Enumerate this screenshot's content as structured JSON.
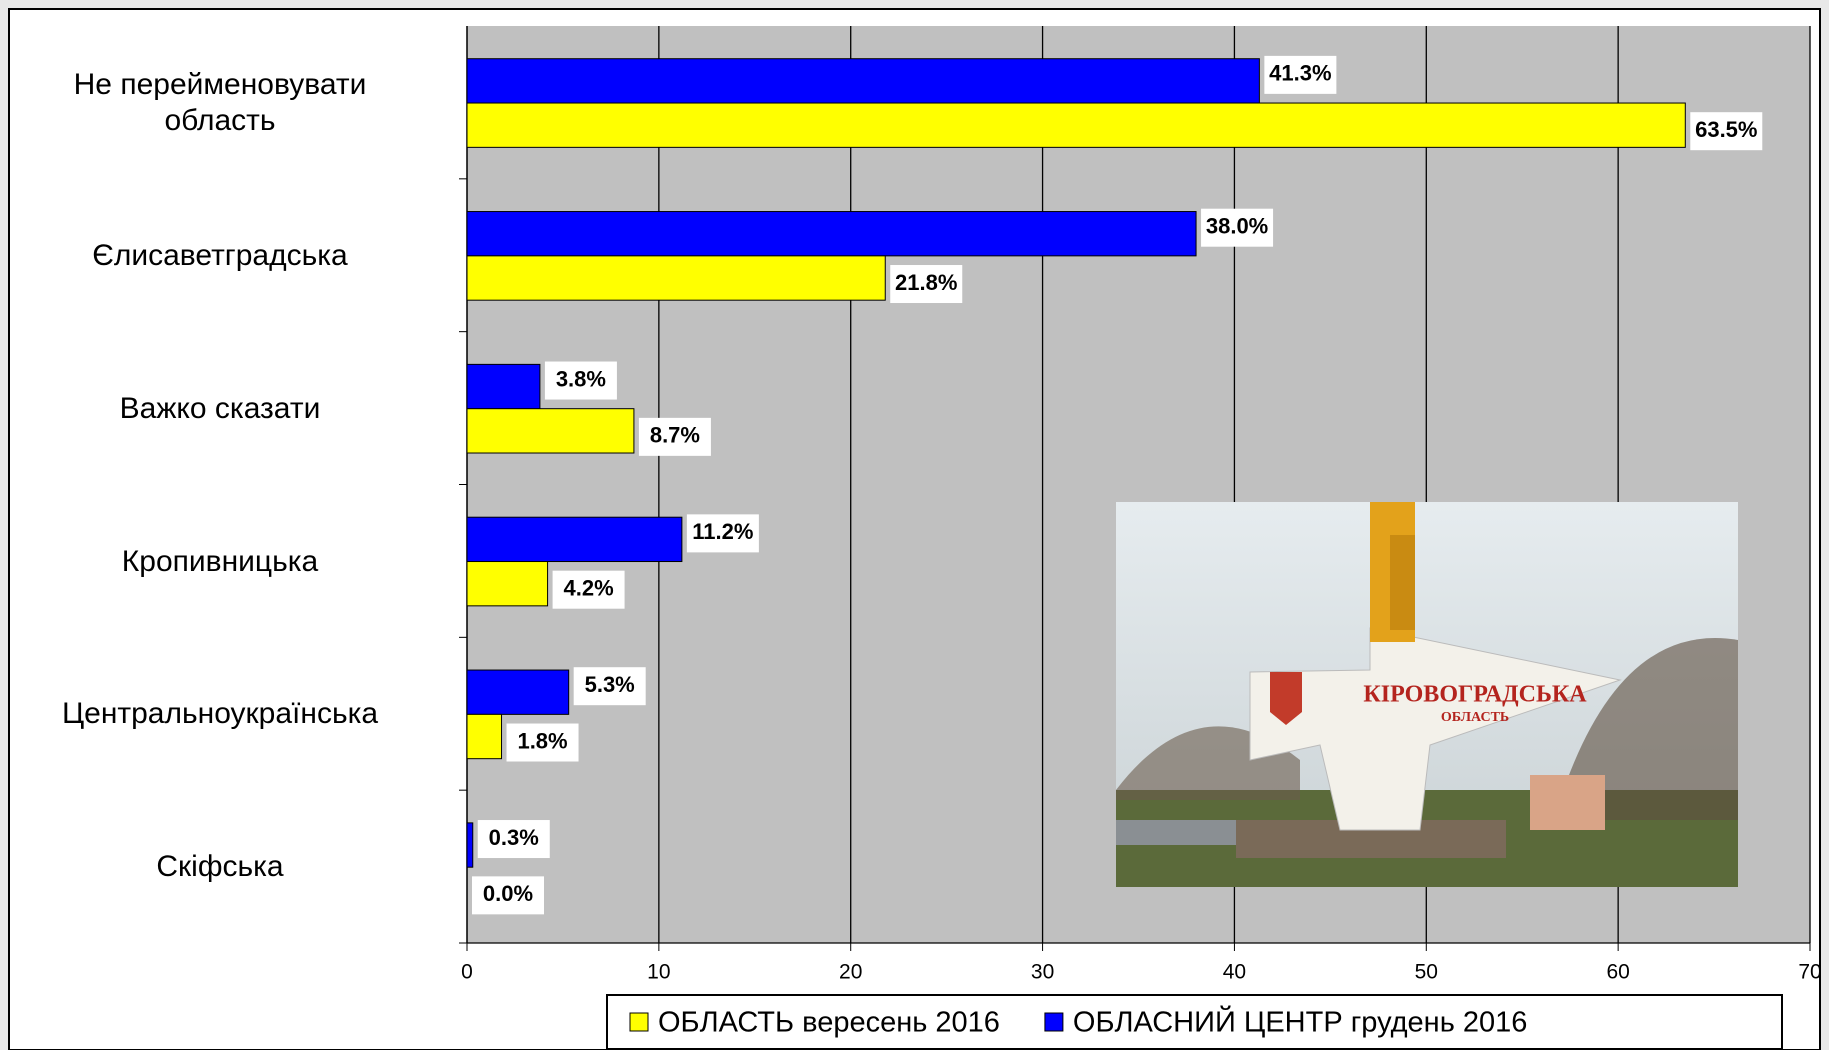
{
  "chart_data": {
    "type": "bar",
    "orientation": "horizontal",
    "categories": [
      "Не перейменовувати\nобласть",
      "Єлисаветградська",
      "Важко сказати",
      "Кропивницька",
      "Центральноукраїнська",
      "Скіфська"
    ],
    "series": [
      {
        "name": "ОБЛАСТЬ вересень 2016",
        "color": "#ffff00",
        "values": [
          63.5,
          21.8,
          8.7,
          4.2,
          1.8,
          0.0
        ],
        "value_labels": [
          "63.5%",
          "21.8%",
          "8.7%",
          "4.2%",
          "1.8%",
          "0.0%"
        ]
      },
      {
        "name": "ОБЛАСНИЙ ЦЕНТР грудень 2016",
        "color": "#0000ff",
        "values": [
          41.3,
          38.0,
          3.8,
          11.2,
          5.3,
          0.3
        ],
        "value_labels": [
          "41.3%",
          "38.0%",
          "3.8%",
          "11.2%",
          "5.3%",
          "0.3%"
        ]
      }
    ],
    "xlim": [
      0,
      70
    ],
    "xticks": [
      0,
      10,
      20,
      30,
      40,
      50,
      60,
      70
    ],
    "grid": true,
    "legend": "bottom"
  },
  "image": {
    "sign_title": "КІРОВОГРАДСЬКА",
    "sign_subtitle": "ОБЛАСТЬ"
  }
}
